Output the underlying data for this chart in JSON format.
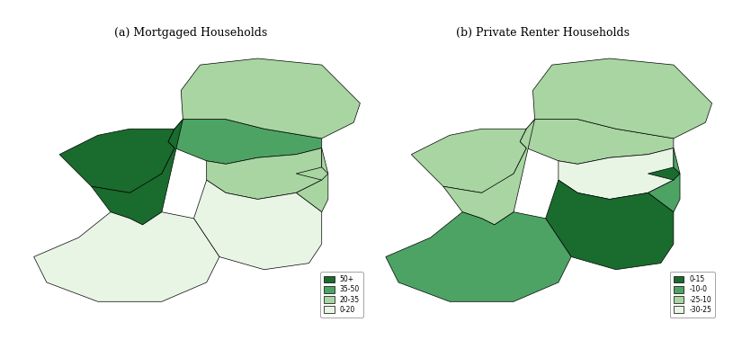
{
  "title_a": "(a) Mortgaged Households",
  "title_b": "(b) Private Renter Households",
  "legend_a": {
    "labels": [
      "50+",
      "35-50",
      "20-35",
      "0-20"
    ],
    "colors": [
      "#1a6b2e",
      "#4da364",
      "#a8d5a2",
      "#e8f5e4"
    ]
  },
  "legend_b": {
    "labels": [
      "0-15",
      "-10-0",
      "-25-10",
      "-30-25"
    ],
    "colors": [
      "#1a6b2e",
      "#4da364",
      "#a8d5a2",
      "#e8f5e4"
    ]
  },
  "background_color": "#ffffff",
  "fig_width": 8.15,
  "fig_height": 3.88,
  "dpi": 100
}
